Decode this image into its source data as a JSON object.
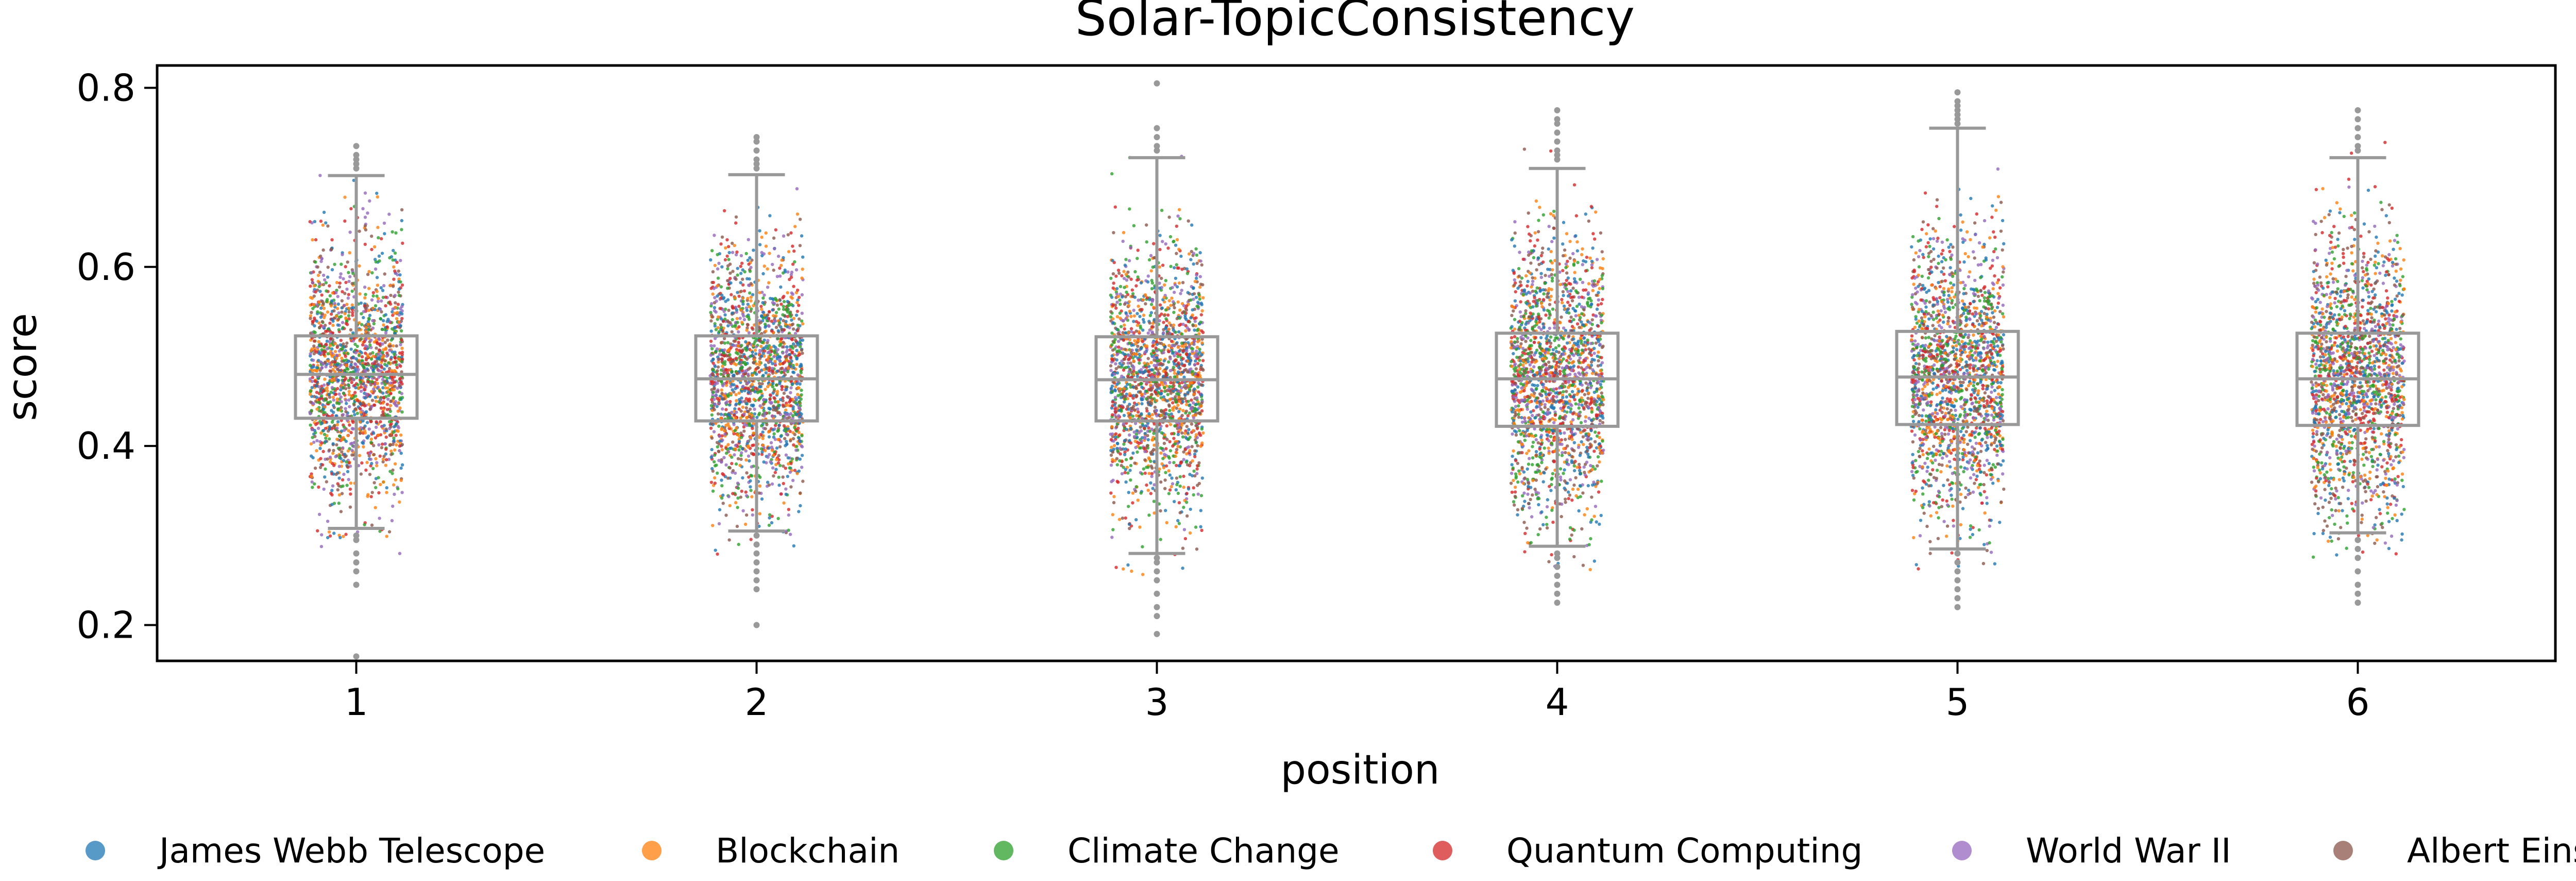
{
  "chart_data": {
    "type": "scatter",
    "subtype": "box-and-strip",
    "title": "Solar-TopicConsistency",
    "xlabel": "position",
    "ylabel": "score",
    "categories": [
      "1",
      "2",
      "3",
      "4",
      "5",
      "6"
    ],
    "ylim": [
      0.16,
      0.825
    ],
    "yticks": [
      {
        "value": 0.2,
        "label": "0.2"
      },
      {
        "value": 0.4,
        "label": "0.4"
      },
      {
        "value": 0.6,
        "label": "0.6"
      },
      {
        "value": 0.8,
        "label": "0.8"
      }
    ],
    "grid": false,
    "legend_placement": "bottom",
    "box_color": "#999999",
    "boxes": [
      {
        "category": "1",
        "q1": 0.431,
        "median": 0.48,
        "q3": 0.523,
        "whisker_low": 0.308,
        "whisker_high": 0.702,
        "outliers": [
          0.71,
          0.715,
          0.72,
          0.725,
          0.735,
          0.3,
          0.295,
          0.28,
          0.27,
          0.26,
          0.245,
          0.165
        ]
      },
      {
        "category": "2",
        "q1": 0.428,
        "median": 0.475,
        "q3": 0.523,
        "whisker_low": 0.305,
        "whisker_high": 0.703,
        "outliers": [
          0.71,
          0.715,
          0.72,
          0.73,
          0.74,
          0.745,
          0.3,
          0.29,
          0.28,
          0.27,
          0.26,
          0.25,
          0.24,
          0.2
        ]
      },
      {
        "category": "3",
        "q1": 0.428,
        "median": 0.474,
        "q3": 0.522,
        "whisker_low": 0.28,
        "whisker_high": 0.722,
        "outliers": [
          0.73,
          0.735,
          0.745,
          0.755,
          0.805,
          0.275,
          0.27,
          0.26,
          0.25,
          0.235,
          0.22,
          0.21,
          0.19
        ]
      },
      {
        "category": "4",
        "q1": 0.422,
        "median": 0.475,
        "q3": 0.526,
        "whisker_low": 0.288,
        "whisker_high": 0.71,
        "outliers": [
          0.72,
          0.725,
          0.73,
          0.74,
          0.75,
          0.76,
          0.765,
          0.775,
          0.28,
          0.275,
          0.265,
          0.255,
          0.245,
          0.235,
          0.225
        ]
      },
      {
        "category": "5",
        "q1": 0.424,
        "median": 0.477,
        "q3": 0.528,
        "whisker_low": 0.285,
        "whisker_high": 0.755,
        "outliers": [
          0.76,
          0.765,
          0.77,
          0.775,
          0.78,
          0.785,
          0.795,
          0.28,
          0.27,
          0.26,
          0.25,
          0.24,
          0.23,
          0.22
        ]
      },
      {
        "category": "6",
        "q1": 0.423,
        "median": 0.475,
        "q3": 0.526,
        "whisker_low": 0.303,
        "whisker_high": 0.722,
        "outliers": [
          0.73,
          0.735,
          0.745,
          0.755,
          0.765,
          0.775,
          0.295,
          0.285,
          0.275,
          0.26,
          0.245,
          0.235,
          0.225
        ]
      }
    ],
    "series": [
      {
        "name": "James Webb Telescope",
        "color": "#1f77b4"
      },
      {
        "name": "Blockchain",
        "color": "#ff7f0e"
      },
      {
        "name": "Climate Change",
        "color": "#2ca02c"
      },
      {
        "name": "Quantum Computing",
        "color": "#d62728"
      },
      {
        "name": "World War II",
        "color": "#9467bd"
      },
      {
        "name": "Albert Einstein",
        "color": "#8c564b"
      }
    ]
  }
}
